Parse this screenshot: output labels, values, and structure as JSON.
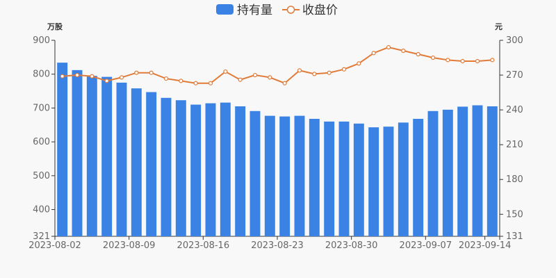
{
  "chart_data": {
    "type": "bar-line",
    "legend": {
      "placement": "top-center",
      "items": [
        {
          "label": "持有量",
          "marker": "rect"
        },
        {
          "label": "收盘价",
          "marker": "line-circle"
        }
      ]
    },
    "left_axis": {
      "unit": "万股",
      "min": 321,
      "max": 900,
      "ticks": [
        321,
        400,
        500,
        600,
        700,
        800,
        900
      ]
    },
    "right_axis": {
      "unit": "元",
      "min": 131,
      "max": 300,
      "ticks": [
        131,
        150,
        180,
        210,
        240,
        270,
        300
      ]
    },
    "x_tick_labels": [
      {
        "label": "2023-08-02",
        "index": 0
      },
      {
        "label": "2023-08-09",
        "index": 5
      },
      {
        "label": "2023-08-16",
        "index": 10
      },
      {
        "label": "2023-08-23",
        "index": 15
      },
      {
        "label": "2023-08-30",
        "index": 20
      },
      {
        "label": "2023-09-07",
        "index": 25
      },
      {
        "label": "2023-09-14",
        "index": 29
      }
    ],
    "grid": false,
    "series": [
      {
        "name": "持有量",
        "type": "bar",
        "axis": "left",
        "color": "#3a83e4",
        "values": [
          834,
          812,
          795,
          792,
          775,
          758,
          747,
          730,
          723,
          710,
          714,
          716,
          705,
          691,
          677,
          675,
          677,
          668,
          660,
          660,
          654,
          643,
          645,
          657,
          668,
          691,
          695,
          704,
          708,
          705
        ]
      },
      {
        "name": "收盘价",
        "type": "line",
        "axis": "right",
        "color": "#e07b39",
        "values": [
          269,
          270,
          269,
          265,
          268,
          272,
          272,
          267,
          265,
          263,
          263,
          273,
          266,
          270,
          268,
          263,
          274,
          271,
          272,
          275,
          280,
          289,
          294,
          291,
          288,
          285,
          283,
          282,
          282,
          283
        ]
      }
    ]
  }
}
